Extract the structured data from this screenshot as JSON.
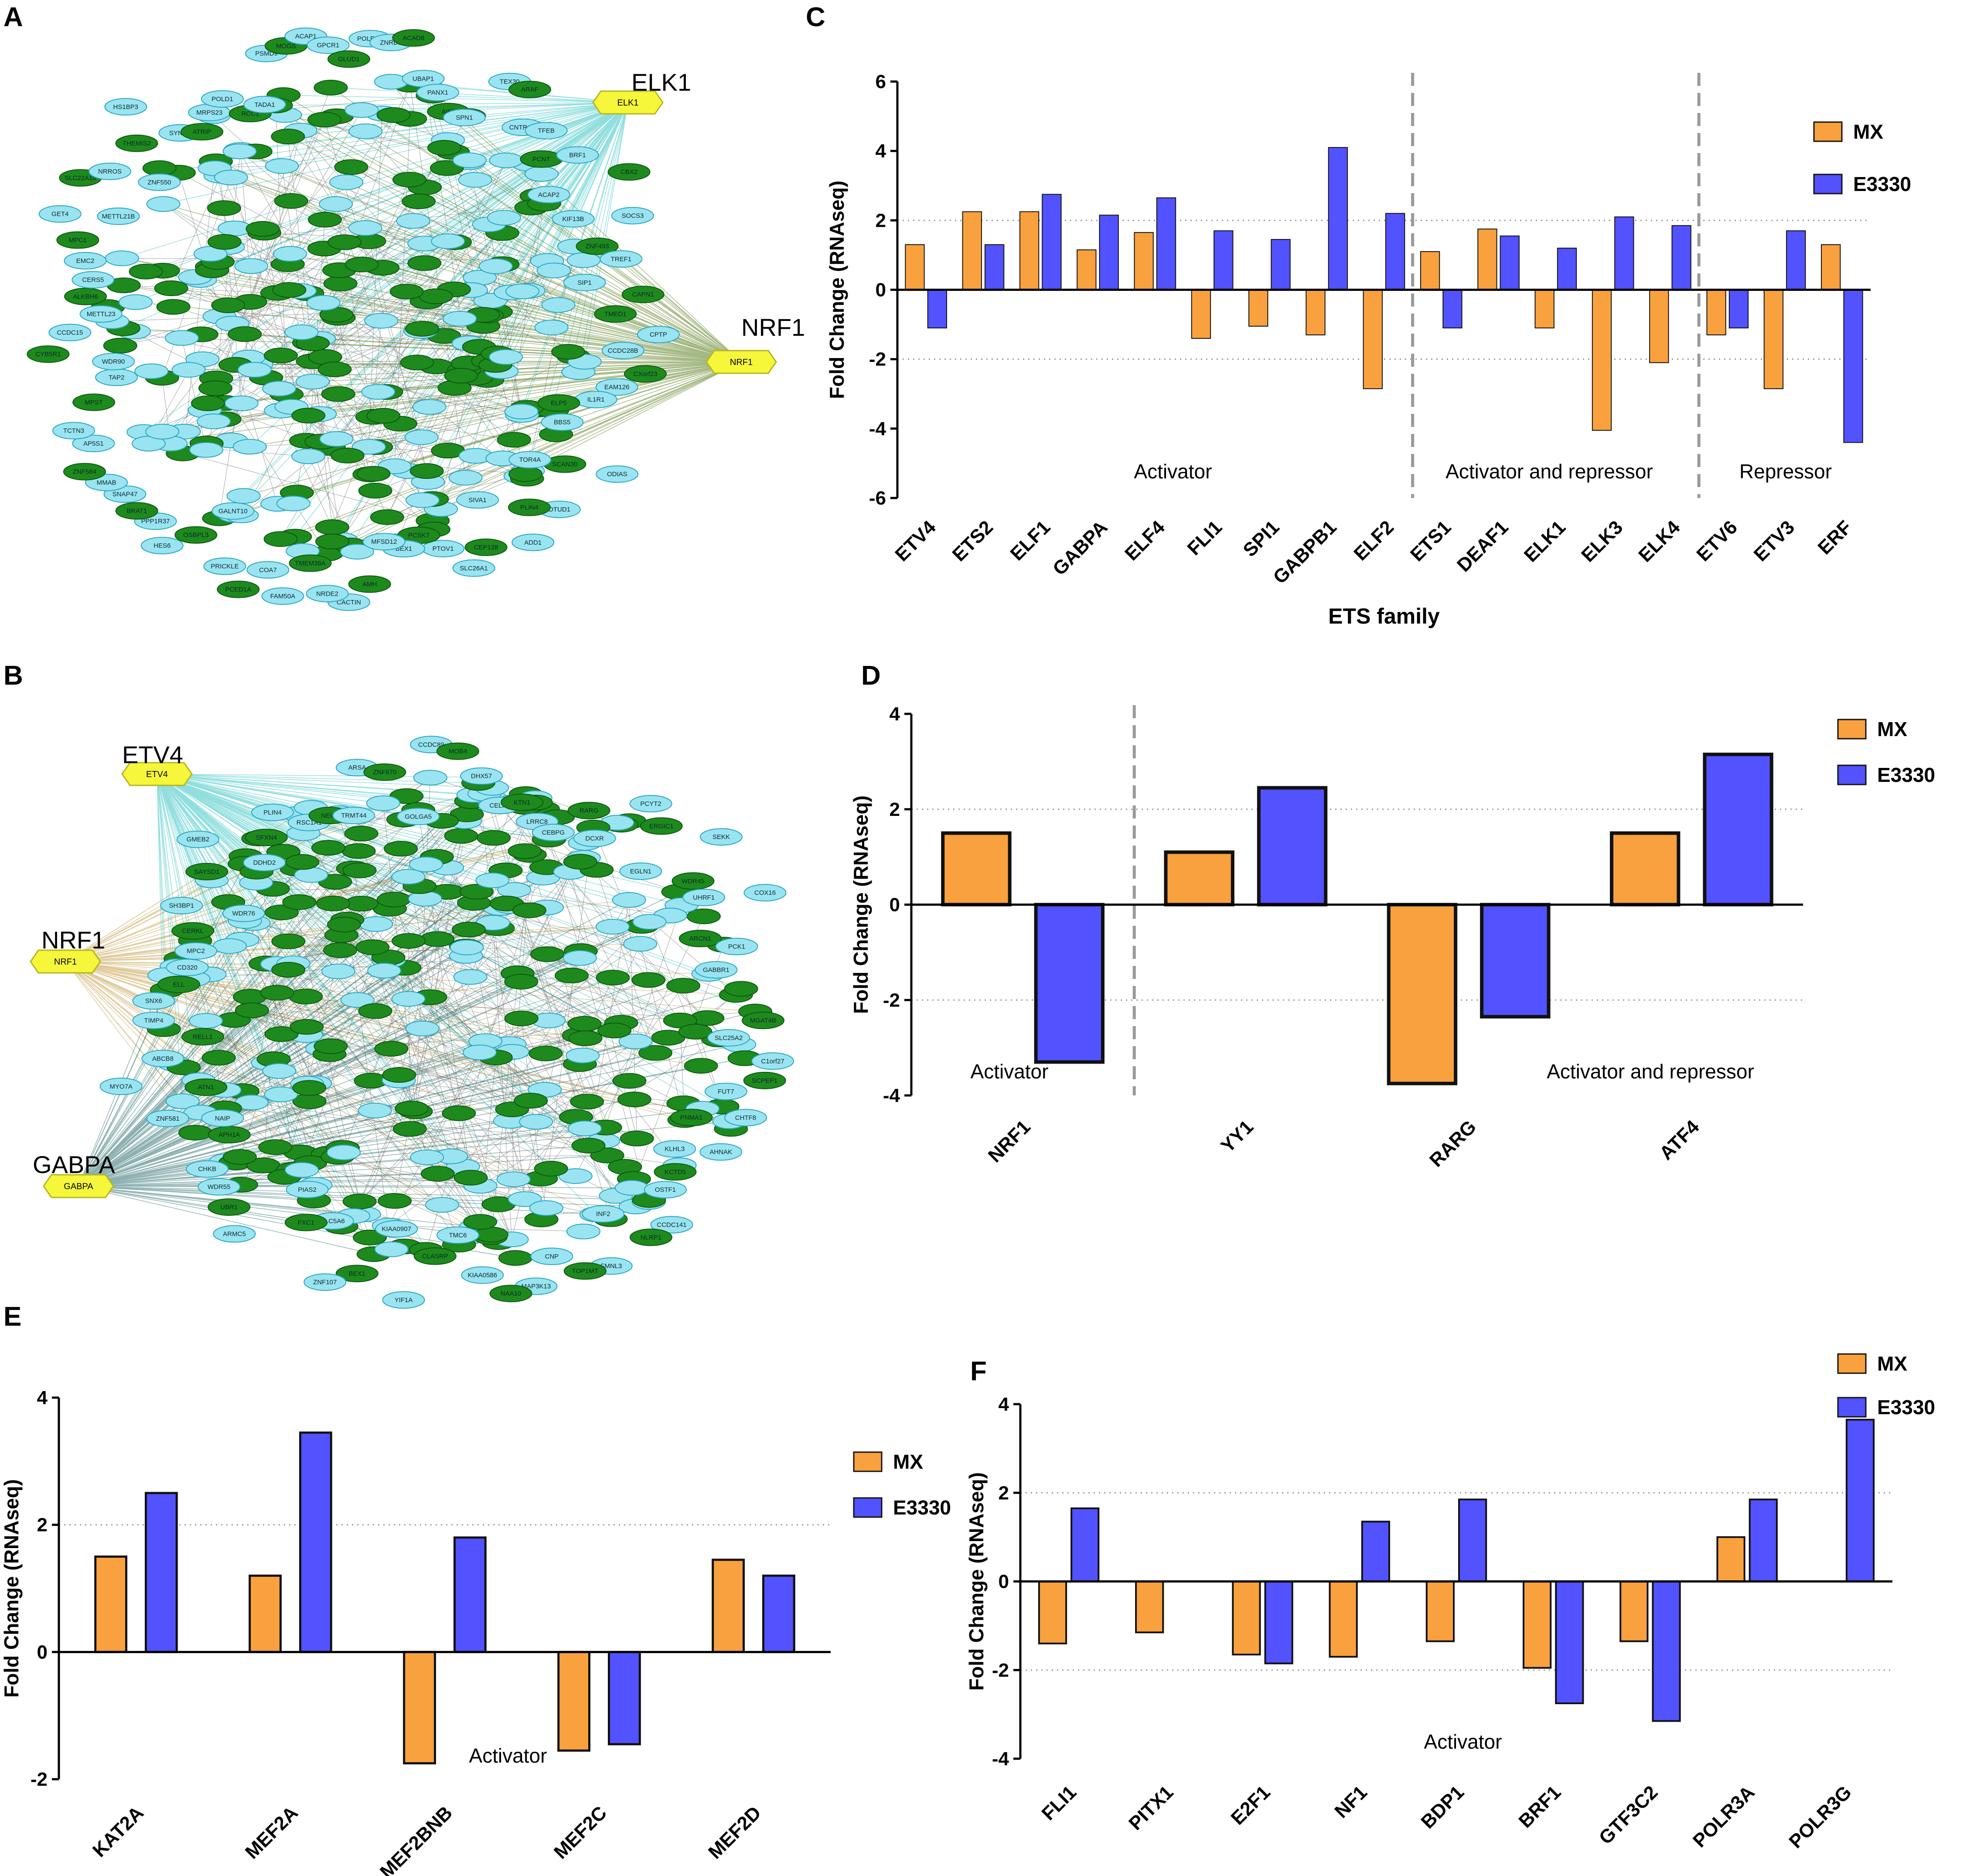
{
  "colors": {
    "mx": "#f9a13e",
    "e3330": "#5252ff",
    "node_green": "#1e8a1e",
    "node_cyan": "#9ae4f2",
    "hub_yellow": "#f6f63a",
    "edge_teal": "#36c4c4",
    "edge_olive": "#5a7f1e",
    "edge_tan": "#c8a04a",
    "edge_dark": "#2e6f6f"
  },
  "panels": {
    "A": {
      "letter": "A",
      "hub_labels": [
        "ELK1",
        "NRF1"
      ],
      "hub_node_text": [
        "ELK1",
        "NRF1"
      ],
      "node_labels": [
        "TMED1",
        "CPTP",
        "CCDC28B",
        "CXorf23",
        "EAM126",
        "IL1R1",
        "ELP5",
        "BBS5",
        "ODIAS",
        "SCAN30",
        "TOR4A",
        "OTUD1",
        "PLIN4",
        "ADD1",
        "SIVA1",
        "CEP128",
        "SLC26A1",
        "PTOV1",
        "PCSK7",
        "BEX1",
        "MFSD12",
        "AMH",
        "CACTIN",
        "NRDE2",
        "TMEM38A",
        "FAM50A",
        "COA7",
        "PCED1A",
        "PRICKLE",
        "GALNT10",
        "OSBPL3",
        "HES6",
        "PPP1R37",
        "BRAT1",
        "SNAP47",
        "MMAB",
        "ZNF584",
        "AP5S1",
        "TCTN3",
        "MPST",
        "TAP2",
        "WDR90",
        "CYB5R1",
        "CCDC15",
        "METTL23",
        "ALKBH6",
        "CERS5",
        "EMC2",
        "MPC1",
        "GET4",
        "METTL21B",
        "SLC22A10",
        "NRROS",
        "ZNF550",
        "THEMIS2",
        "HS1BP3",
        "SYNE3",
        "ATRIP",
        "MRPS23",
        "POLD1",
        "RCC1",
        "TADA1",
        "PSMD9",
        "MOGS",
        "ACAP1",
        "GPCR1",
        "GLUD1",
        "POLR2A",
        "ZNRD1",
        "ACAD8",
        "UBAP1",
        "PANX1",
        "AIF1",
        "SPN1",
        "TEX30",
        "ARAF",
        "CNTROB",
        "TFEB",
        "PCNT",
        "BRF1",
        "ACAP2",
        "CBX2",
        "KIF13B",
        "SOCS3",
        "ZNF493",
        "TREF1",
        "SIP1",
        "CAPN1"
      ]
    },
    "B": {
      "letter": "B",
      "hub_labels": [
        "ETV4",
        "NRF1",
        "GABPA"
      ],
      "hub_node_text": [
        "ETV4",
        "NRF1",
        "GABPA"
      ],
      "node_labels": [
        "MGAT4B",
        "SLC25A2",
        "C1orf27",
        "SCPEP1",
        "FUT7",
        "CHTF8",
        "PNMA1",
        "AHNAK",
        "KLHL3",
        "KCTD5",
        "OSTF1",
        "CCDC141",
        "NLRP1",
        "INF2",
        "FMNL3",
        "TOP1MT",
        "CNP",
        "MAP3K13",
        "NAA10",
        "KIAA0586",
        "TMC6",
        "CLASRP",
        "YIF1A",
        "KIAA0907",
        "BEX1",
        "ZNF107",
        "SLC5A6",
        "FXC1",
        "PIAS2",
        "ARMC5",
        "UBR1",
        "WDR55",
        "CHKB",
        "APH1A",
        "NAIP",
        "ZNF581",
        "ATN1",
        "MYO7A",
        "ABCB8",
        "RELL1",
        "TIMP4",
        "SNX6",
        "ELL",
        "CD320",
        "MPC2",
        "CERKL",
        "SH3BP1",
        "WDR76",
        "SAYSD1",
        "GMEB2",
        "DDHD2",
        "SFXN4",
        "PLIN4",
        "RSC1A1",
        "NEU3",
        "TRMT44",
        "ARSA",
        "ZNF670",
        "GOLGA5",
        "CCDC89",
        "MOB4",
        "DHX57",
        "CELF2",
        "KTN1",
        "LRRC8",
        "CEBPG",
        "RARG",
        "DCXR",
        "PCYT2",
        "ERGIC1",
        "EGLN1",
        "SEKK",
        "WDR45",
        "UHRF1",
        "COX16",
        "ARCN1",
        "PCK1",
        "GABBR1"
      ]
    },
    "C": {
      "letter": "C",
      "chart_data": {
        "type": "bar",
        "title": "",
        "xlabel": "ETS family",
        "ylabel": "Fold Change (RNAseq)",
        "ylim": [
          -6,
          6
        ],
        "yticks": [
          -6,
          -4,
          -2,
          0,
          2,
          4,
          6
        ],
        "dotted_lines": [
          2,
          -2
        ],
        "legend_position": "top-right",
        "categories": [
          "ETV4",
          "ETS2",
          "ELF1",
          "GABPA",
          "ELF4",
          "FLI1",
          "SPI1",
          "GABPB1",
          "ELF2",
          "ETS1",
          "DEAF1",
          "ELK1",
          "ELK3",
          "ELK4",
          "ETV6",
          "ETV3",
          "ERF"
        ],
        "series": [
          {
            "name": "MX",
            "values": [
              1.3,
              2.25,
              2.25,
              1.15,
              1.65,
              -1.4,
              -1.05,
              -1.3,
              -2.85,
              1.1,
              1.75,
              -1.1,
              -4.05,
              -2.1,
              -1.3,
              -2.85,
              1.3
            ]
          },
          {
            "name": "E3330",
            "values": [
              -1.1,
              1.3,
              2.75,
              2.15,
              2.65,
              1.7,
              1.45,
              4.1,
              2.2,
              -1.1,
              1.55,
              1.2,
              2.1,
              1.85,
              -1.1,
              1.7,
              -4.4
            ]
          }
        ],
        "regions": [
          {
            "label": "Activator",
            "from": 0,
            "to": 8
          },
          {
            "label": "Activator and repressor",
            "from": 9,
            "to": 13
          },
          {
            "label": "Repressor",
            "from": 14,
            "to": 16
          }
        ]
      }
    },
    "D": {
      "letter": "D",
      "chart_data": {
        "type": "bar",
        "title": "",
        "xlabel": "",
        "ylabel": "Fold Change (RNAseq)",
        "ylim": [
          -4,
          4
        ],
        "yticks": [
          -4,
          -2,
          0,
          2,
          4
        ],
        "dotted_lines": [
          2,
          -2
        ],
        "legend_position": "top-right",
        "categories": [
          "NRF1",
          "YY1",
          "RARG",
          "ATF4"
        ],
        "series": [
          {
            "name": "MX",
            "values": [
              1.5,
              1.1,
              -3.75,
              1.5
            ]
          },
          {
            "name": "E3330",
            "values": [
              -3.3,
              2.45,
              -2.35,
              3.15
            ]
          }
        ],
        "regions": [
          {
            "label": "Activator",
            "from": 0,
            "to": 0
          },
          {
            "label": "Activator and repressor",
            "from": 1,
            "to": 3
          }
        ]
      }
    },
    "E": {
      "letter": "E",
      "chart_data": {
        "type": "bar",
        "title": "",
        "xlabel": "",
        "ylabel": "Fold Change (RNAseq)",
        "ylim": [
          -2,
          4
        ],
        "yticks": [
          -2,
          0,
          2,
          4
        ],
        "dotted_lines": [
          2
        ],
        "legend_position": "right",
        "categories": [
          "KAT2A",
          "MEF2A",
          "MEF2BNB",
          "MEF2C",
          "MEF2D"
        ],
        "series": [
          {
            "name": "MX",
            "values": [
              1.5,
              1.2,
              -1.75,
              -1.55,
              1.45
            ]
          },
          {
            "name": "E3330",
            "values": [
              2.5,
              3.45,
              1.8,
              -1.45,
              1.2
            ]
          }
        ],
        "regions": [
          {
            "label": "Activator",
            "from": 0,
            "to": 4
          }
        ]
      }
    },
    "F": {
      "letter": "F",
      "chart_data": {
        "type": "bar",
        "title": "",
        "xlabel": "",
        "ylabel": "Fold Change (RNAseq)",
        "ylim": [
          -4,
          4
        ],
        "yticks": [
          -4,
          -2,
          0,
          2,
          4
        ],
        "dotted_lines": [
          2,
          -2
        ],
        "legend_position": "top-right",
        "categories": [
          "FLI1",
          "PITX1",
          "E2F1",
          "NF1",
          "BDP1",
          "BRF1",
          "GTF3C2",
          "POLR3A",
          "POLR3G"
        ],
        "series": [
          {
            "name": "MX",
            "values": [
              -1.4,
              -1.15,
              -1.65,
              -1.7,
              -1.35,
              -1.95,
              -1.35,
              1.0,
              0
            ]
          },
          {
            "name": "E3330",
            "values": [
              1.65,
              0,
              -1.85,
              1.35,
              1.85,
              -2.75,
              -3.15,
              1.85,
              3.65
            ]
          }
        ],
        "regions": [
          {
            "label": "Activator",
            "from": 0,
            "to": 8
          }
        ]
      }
    }
  }
}
